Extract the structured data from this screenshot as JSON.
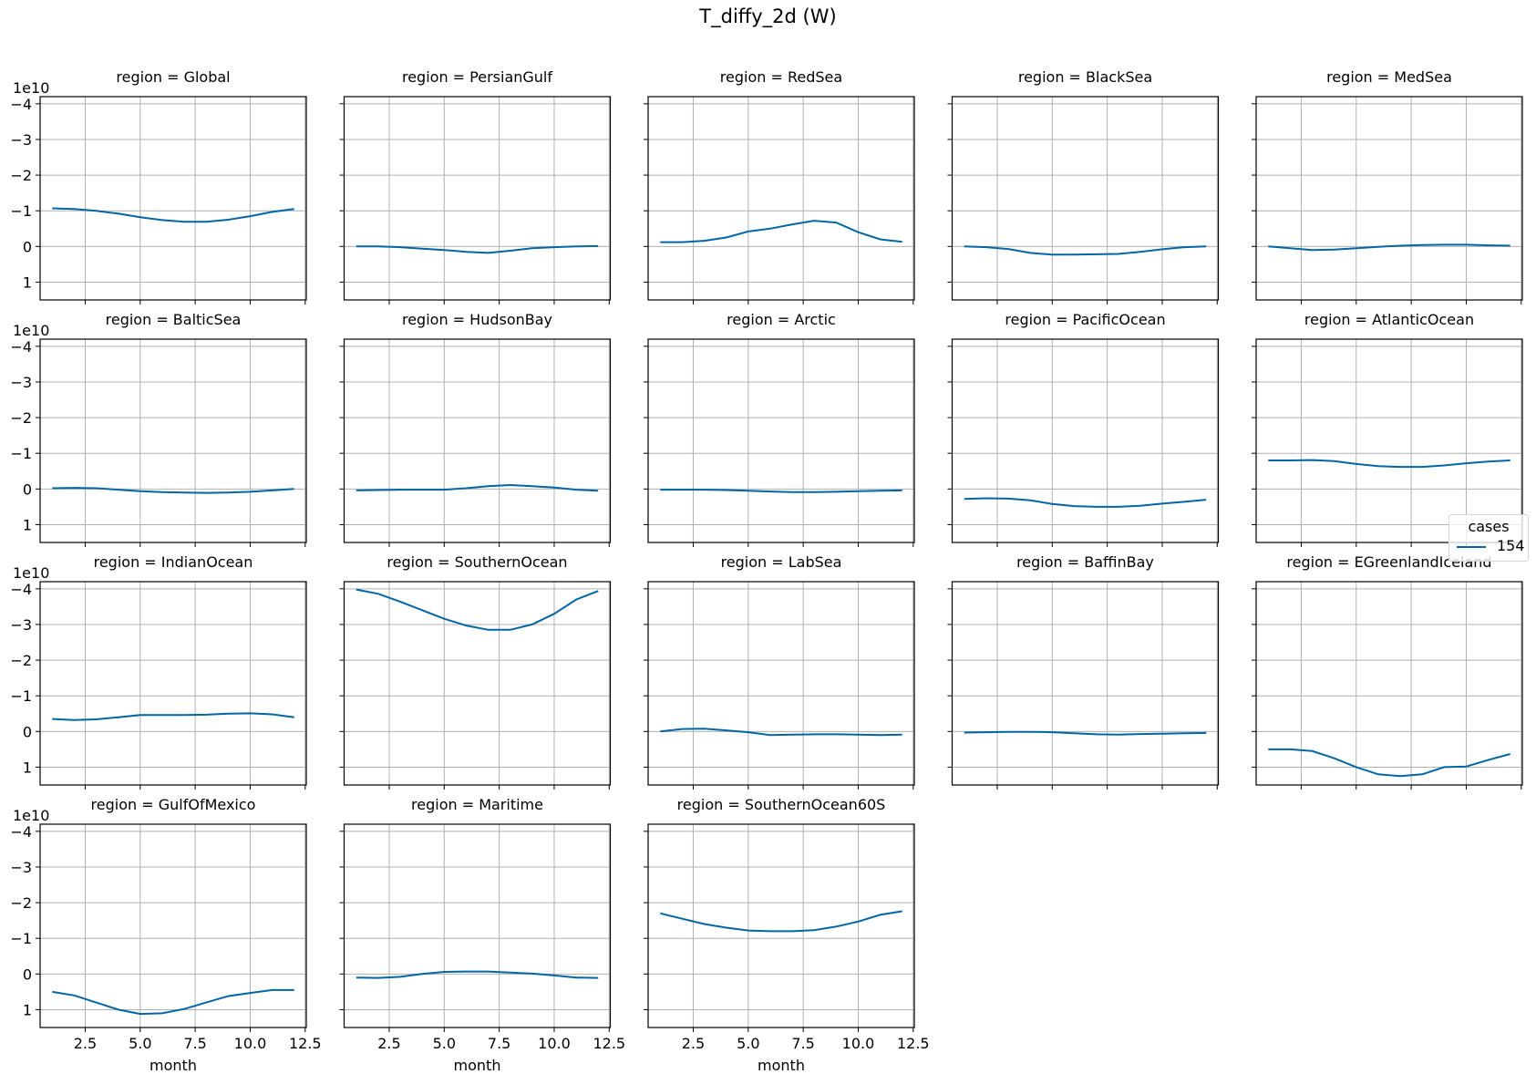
{
  "figure": {
    "title": "T_diffy_2d (W)",
    "line_color": "#0066a6"
  },
  "legend": {
    "title": "cases",
    "entries": [
      {
        "label": "154",
        "color": "#0066a6"
      }
    ]
  },
  "chart_data": {
    "type": "line",
    "title": "T_diffy_2d (W)",
    "xlabel": "month",
    "ylabel": "",
    "y_scale_label": "1e10",
    "y_inverted": true,
    "ylim": [
      1.5,
      -4.2
    ],
    "xlim": [
      0.45,
      12.55
    ],
    "xticks": [
      2.5,
      5.0,
      7.5,
      10.0,
      12.5
    ],
    "xtick_labels": [
      "2.5",
      "5.0",
      "7.5",
      "10.0",
      "12.5"
    ],
    "yticks": [
      -4,
      -3,
      -2,
      -1,
      0,
      1
    ],
    "ytick_labels": [
      "−4",
      "−3",
      "−2",
      "−1",
      "0",
      "1"
    ],
    "grid": true,
    "legend_title": "cases",
    "legend_position": "right-center",
    "x": [
      1,
      2,
      3,
      4,
      5,
      6,
      7,
      8,
      9,
      10,
      11,
      12
    ],
    "facets": [
      {
        "region": "Global",
        "title": "region = Global",
        "series": [
          {
            "name": "154",
            "values": [
              -1.07,
              -1.05,
              -1.0,
              -0.92,
              -0.82,
              -0.74,
              -0.69,
              -0.69,
              -0.75,
              -0.85,
              -0.97,
              -1.05
            ]
          }
        ]
      },
      {
        "region": "PersianGulf",
        "title": "region = PersianGulf",
        "series": [
          {
            "name": "154",
            "values": [
              0.0,
              0.0,
              0.02,
              0.06,
              0.1,
              0.15,
              0.18,
              0.12,
              0.05,
              0.02,
              0.0,
              -0.01
            ]
          }
        ]
      },
      {
        "region": "RedSea",
        "title": "region = RedSea",
        "series": [
          {
            "name": "154",
            "values": [
              -0.12,
              -0.12,
              -0.16,
              -0.25,
              -0.42,
              -0.5,
              -0.62,
              -0.72,
              -0.67,
              -0.4,
              -0.2,
              -0.13
            ]
          }
        ]
      },
      {
        "region": "BlackSea",
        "title": "region = BlackSea",
        "series": [
          {
            "name": "154",
            "values": [
              0.0,
              0.02,
              0.07,
              0.18,
              0.23,
              0.23,
              0.22,
              0.21,
              0.15,
              0.08,
              0.02,
              0.0
            ]
          }
        ]
      },
      {
        "region": "MedSea",
        "title": "region = MedSea",
        "series": [
          {
            "name": "154",
            "values": [
              0.0,
              0.05,
              0.1,
              0.09,
              0.05,
              0.01,
              -0.02,
              -0.04,
              -0.05,
              -0.05,
              -0.03,
              -0.02
            ]
          }
        ]
      },
      {
        "region": "BalticSea",
        "title": "region = BalticSea",
        "series": [
          {
            "name": "154",
            "values": [
              -0.02,
              -0.03,
              -0.02,
              0.02,
              0.06,
              0.09,
              0.1,
              0.11,
              0.1,
              0.08,
              0.04,
              0.0
            ]
          }
        ]
      },
      {
        "region": "HudsonBay",
        "title": "region = HudsonBay",
        "series": [
          {
            "name": "154",
            "values": [
              0.04,
              0.03,
              0.02,
              0.02,
              0.02,
              -0.02,
              -0.08,
              -0.11,
              -0.08,
              -0.04,
              0.02,
              0.05
            ]
          }
        ]
      },
      {
        "region": "Arctic",
        "title": "region = Arctic",
        "series": [
          {
            "name": "154",
            "values": [
              0.02,
              0.02,
              0.02,
              0.03,
              0.05,
              0.07,
              0.09,
              0.09,
              0.08,
              0.06,
              0.05,
              0.04
            ]
          }
        ]
      },
      {
        "region": "PacificOcean",
        "title": "region = PacificOcean",
        "series": [
          {
            "name": "154",
            "values": [
              0.28,
              0.26,
              0.27,
              0.32,
              0.42,
              0.48,
              0.5,
              0.5,
              0.47,
              0.41,
              0.36,
              0.3
            ]
          }
        ]
      },
      {
        "region": "AtlanticOcean",
        "title": "region = AtlanticOcean",
        "series": [
          {
            "name": "154",
            "values": [
              -0.8,
              -0.8,
              -0.81,
              -0.78,
              -0.7,
              -0.64,
              -0.62,
              -0.62,
              -0.66,
              -0.72,
              -0.77,
              -0.8
            ]
          }
        ]
      },
      {
        "region": "IndianOcean",
        "title": "region = IndianOcean",
        "series": [
          {
            "name": "154",
            "values": [
              -0.35,
              -0.32,
              -0.34,
              -0.4,
              -0.46,
              -0.46,
              -0.46,
              -0.47,
              -0.5,
              -0.51,
              -0.48,
              -0.4
            ]
          }
        ]
      },
      {
        "region": "SouthernOcean",
        "title": "region = SouthernOcean",
        "series": [
          {
            "name": "154",
            "values": [
              -3.98,
              -3.86,
              -3.64,
              -3.4,
              -3.16,
              -2.97,
              -2.85,
              -2.85,
              -3.0,
              -3.3,
              -3.7,
              -3.94
            ]
          }
        ]
      },
      {
        "region": "LabSea",
        "title": "region = LabSea",
        "series": [
          {
            "name": "154",
            "values": [
              0.0,
              -0.07,
              -0.08,
              -0.03,
              0.02,
              0.1,
              0.09,
              0.08,
              0.08,
              0.09,
              0.1,
              0.09
            ]
          }
        ]
      },
      {
        "region": "BaffinBay",
        "title": "region = BaffinBay",
        "series": [
          {
            "name": "154",
            "values": [
              0.03,
              0.02,
              0.01,
              0.01,
              0.02,
              0.05,
              0.08,
              0.09,
              0.07,
              0.06,
              0.05,
              0.04
            ]
          }
        ]
      },
      {
        "region": "EGreenlandIceland",
        "title": "region = EGreenlandIceland",
        "series": [
          {
            "name": "154",
            "values": [
              0.5,
              0.5,
              0.55,
              0.75,
              1.0,
              1.2,
              1.25,
              1.2,
              1.0,
              0.98,
              0.8,
              0.63
            ]
          }
        ]
      },
      {
        "region": "GulfOfMexico",
        "title": "region = GulfOfMexico",
        "series": [
          {
            "name": "154",
            "values": [
              0.5,
              0.6,
              0.8,
              1.0,
              1.12,
              1.1,
              0.98,
              0.8,
              0.62,
              0.53,
              0.45,
              0.45
            ]
          }
        ]
      },
      {
        "region": "Maritime",
        "title": "region = Maritime",
        "series": [
          {
            "name": "154",
            "values": [
              0.1,
              0.11,
              0.08,
              0.0,
              -0.06,
              -0.07,
              -0.07,
              -0.04,
              -0.01,
              0.04,
              0.1,
              0.11
            ]
          }
        ]
      },
      {
        "region": "SouthernOcean60S",
        "title": "region = SouthernOcean60S",
        "series": [
          {
            "name": "154",
            "values": [
              -1.7,
              -1.55,
              -1.4,
              -1.3,
              -1.22,
              -1.2,
              -1.2,
              -1.23,
              -1.33,
              -1.47,
              -1.66,
              -1.76
            ]
          }
        ]
      }
    ]
  }
}
